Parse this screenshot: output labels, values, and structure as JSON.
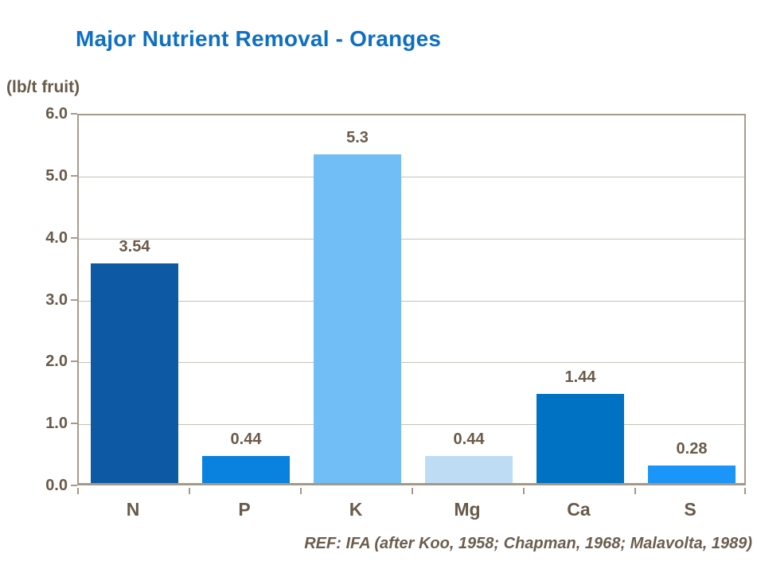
{
  "title": "Major Nutrient Removal - Oranges",
  "unit_label": "(lb/t fruit)",
  "footer_ref": "REF: IFA (after Koo, 1958; Chapman, 1968; Malavolta, 1989)",
  "colors": {
    "title_text": "#0e6fc4",
    "axis_text": "#685a48",
    "value_label_text": "#6a5b49",
    "footer_text": "#6b5e4e",
    "gridline": "#c9c0b3",
    "plot_border": "#a79c8c",
    "axis_line": "#a39889",
    "background": "#ffffff"
  },
  "chart_data": {
    "type": "bar",
    "title": "Major Nutrient Removal - Oranges",
    "xlabel": "",
    "ylabel": "(lb/t fruit)",
    "categories": [
      "N",
      "P",
      "K",
      "Mg",
      "Ca",
      "S"
    ],
    "values": [
      3.54,
      0.44,
      5.3,
      0.44,
      1.44,
      0.28
    ],
    "value_labels": [
      "3.54",
      "0.44",
      "5.3",
      "0.44",
      "1.44",
      "0.28"
    ],
    "bar_colors": [
      "#0e59a4",
      "#0981de",
      "#70bef5",
      "#bfdcf5",
      "#0072c4",
      "#1b95f7"
    ],
    "ylim": [
      0,
      6
    ],
    "ytick_step": 1.0,
    "ytick_labels": [
      "6.0",
      "5.0",
      "4.0",
      "3.0",
      "2.0",
      "1.0",
      "0.0"
    ],
    "grid": true,
    "legend": null,
    "annotation": "REF: IFA (after Koo, 1958; Chapman, 1968; Malavolta, 1989)"
  }
}
